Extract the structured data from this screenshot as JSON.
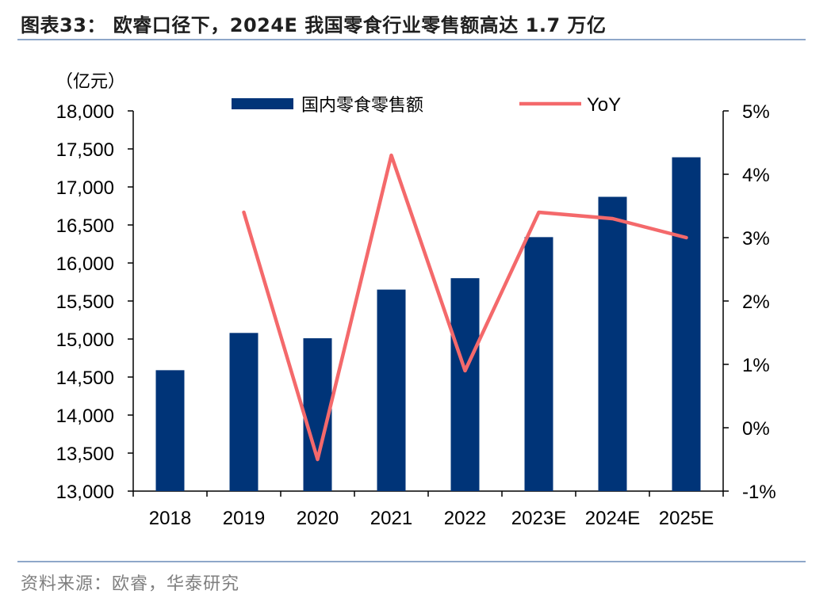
{
  "header": {
    "title": "图表33：   欧睿口径下，2024E 我国零食行业零售额高达 1.7 万亿"
  },
  "footer": {
    "source": "资料来源：欧睿，华泰研究"
  },
  "chart_data": {
    "type": "bar",
    "categories": [
      "2018",
      "2019",
      "2020",
      "2021",
      "2022",
      "2023E",
      "2024E",
      "2025E"
    ],
    "series": [
      {
        "name": "国内零食零售额",
        "type": "bar",
        "axis": "left",
        "values": [
          14590,
          15080,
          15010,
          15650,
          15800,
          16340,
          16870,
          17390
        ]
      },
      {
        "name": "YoY",
        "type": "line",
        "axis": "right",
        "values": [
          null,
          3.4,
          -0.5,
          4.3,
          0.9,
          3.4,
          3.3,
          3.0
        ]
      }
    ],
    "y_left": {
      "unit_label": "（亿元）",
      "min": 13000,
      "max": 18000,
      "step": 500,
      "ticks": [
        "13,000",
        "13,500",
        "14,000",
        "14,500",
        "15,000",
        "15,500",
        "16,000",
        "16,500",
        "17,000",
        "17,500",
        "18,000"
      ]
    },
    "y_right": {
      "min": -1,
      "max": 5,
      "step": 1,
      "ticks": [
        "-1%",
        "0%",
        "1%",
        "2%",
        "3%",
        "4%",
        "5%"
      ]
    },
    "legend": "top",
    "grid": false,
    "colors": {
      "bar": "#003478",
      "line": "#f4696b",
      "axis": "#000000"
    }
  }
}
